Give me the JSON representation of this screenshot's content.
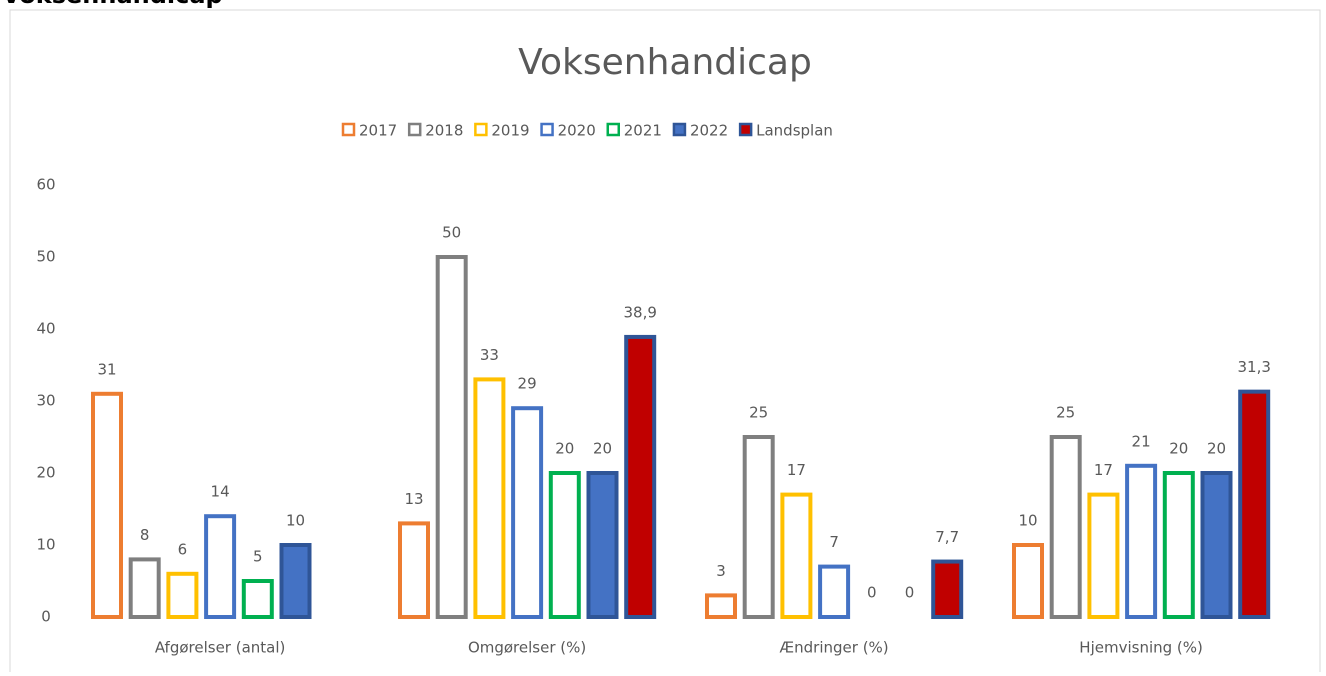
{
  "heading": "Voksenhandicap",
  "chart_data": {
    "type": "bar",
    "title": "Voksenhandicap",
    "categories": [
      "Afgørelser (antal)",
      "Omgørelser (%)",
      "Ændringer (%)",
      "Hjemvisning (%)"
    ],
    "series": [
      {
        "name": "2017",
        "color": "#ed7d31",
        "fill": null,
        "values": [
          31,
          13,
          3,
          10
        ]
      },
      {
        "name": "2018",
        "color": "#7f7f7f",
        "fill": null,
        "values": [
          8,
          50,
          25,
          25
        ]
      },
      {
        "name": "2019",
        "color": "#ffc000",
        "fill": null,
        "values": [
          6,
          33,
          17,
          17
        ]
      },
      {
        "name": "2020",
        "color": "#4472c4",
        "fill": null,
        "values": [
          14,
          29,
          7,
          21
        ]
      },
      {
        "name": "2021",
        "color": "#00b050",
        "fill": null,
        "values": [
          5,
          20,
          0,
          20
        ]
      },
      {
        "name": "2022",
        "color": "#2f5597",
        "fill": "#4472c4",
        "values": [
          10,
          20,
          0,
          20
        ]
      },
      {
        "name": "Landsplan",
        "color": "#2f5597",
        "fill": "#c00000",
        "values": [
          null,
          38.9,
          7.7,
          31.3
        ],
        "value_labels": [
          null,
          "38,9",
          "7,7",
          "31,3"
        ]
      }
    ],
    "ylim": [
      0,
      60
    ],
    "yticks": [
      0,
      10,
      20,
      30,
      40,
      50,
      60
    ],
    "grid": false,
    "legend": "top"
  }
}
